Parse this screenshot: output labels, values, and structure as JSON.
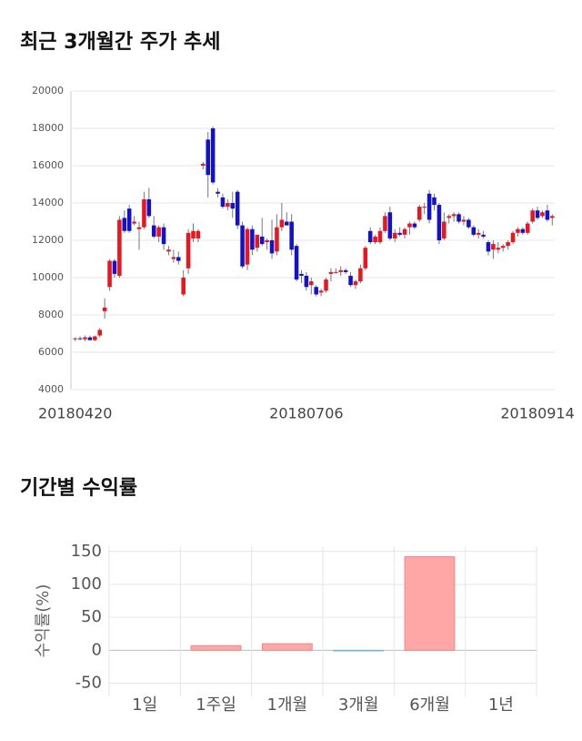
{
  "chart_data": [
    {
      "type": "candlestick",
      "title": "최근 3개월간 주가 추세",
      "categories": [
        "20180420",
        null,
        null,
        null,
        null,
        null,
        null,
        null,
        null,
        null,
        null,
        null,
        null,
        null,
        null,
        null,
        null,
        null,
        null,
        null,
        null,
        null,
        null,
        null,
        null,
        null,
        null,
        null,
        null,
        null,
        null,
        null,
        null,
        null,
        null,
        null,
        null,
        null,
        null,
        null,
        null,
        null,
        null,
        null,
        null,
        null,
        null,
        "20180706",
        null,
        null,
        null,
        null,
        null,
        null,
        null,
        null,
        null,
        null,
        null,
        null,
        null,
        null,
        null,
        null,
        null,
        null,
        null,
        null,
        null,
        null,
        null,
        null,
        null,
        null,
        null,
        null,
        null,
        null,
        null,
        null,
        null,
        null,
        null,
        null,
        null,
        null,
        null,
        null,
        null,
        null,
        null,
        null,
        null,
        null,
        "20180914",
        null,
        null,
        null
      ],
      "ohlc": [
        [
          6700,
          6800,
          6600,
          6750
        ],
        [
          6750,
          6850,
          6650,
          6700
        ],
        [
          6700,
          6900,
          6600,
          6800
        ],
        [
          6800,
          6900,
          6650,
          6650
        ],
        [
          6650,
          6900,
          6600,
          6850
        ],
        [
          6900,
          7300,
          6800,
          7200
        ],
        [
          8200,
          8900,
          7800,
          8400
        ],
        [
          9500,
          11000,
          9300,
          10900
        ],
        [
          10900,
          11000,
          10000,
          10200
        ],
        [
          10100,
          13300,
          10000,
          13100
        ],
        [
          13200,
          13600,
          12400,
          12500
        ],
        [
          13700,
          13900,
          12400,
          12500
        ],
        [
          12900,
          13300,
          12800,
          13000
        ],
        [
          12600,
          13000,
          11500,
          12700
        ],
        [
          12700,
          14600,
          12600,
          14200
        ],
        [
          14200,
          14800,
          13200,
          13300
        ],
        [
          12800,
          13300,
          12100,
          12200
        ],
        [
          12200,
          12800,
          11900,
          12700
        ],
        [
          12700,
          12900,
          11500,
          11800
        ],
        [
          11400,
          11700,
          11200,
          11500
        ],
        [
          11000,
          11500,
          10800,
          11100
        ],
        [
          11100,
          11400,
          10700,
          10900
        ],
        [
          9100,
          10400,
          9000,
          10000
        ],
        [
          10500,
          12600,
          10200,
          12400
        ],
        [
          12100,
          12900,
          11900,
          12500
        ],
        [
          12100,
          12600,
          11900,
          12500
        ],
        [
          16000,
          16200,
          15800,
          16100
        ],
        [
          17400,
          17800,
          14300,
          15500
        ],
        [
          18000,
          18100,
          15000,
          15100
        ],
        [
          14600,
          14800,
          14300,
          14500
        ],
        [
          14300,
          14500,
          13700,
          13800
        ],
        [
          13800,
          14200,
          13600,
          14000
        ],
        [
          14000,
          14600,
          13200,
          13700
        ],
        [
          14600,
          14700,
          12600,
          12800
        ],
        [
          12800,
          13000,
          10500,
          10600
        ],
        [
          10700,
          12700,
          10400,
          12600
        ],
        [
          12600,
          12800,
          11200,
          11500
        ],
        [
          11600,
          12300,
          11400,
          12300
        ],
        [
          12200,
          13200,
          11700,
          11800
        ],
        [
          11900,
          12100,
          11500,
          12000
        ],
        [
          12000,
          13100,
          11000,
          11300
        ],
        [
          11400,
          13400,
          11200,
          12700
        ],
        [
          12700,
          14000,
          12500,
          13100
        ],
        [
          13000,
          13500,
          12800,
          12800
        ],
        [
          13000,
          13400,
          11200,
          11500
        ],
        [
          11700,
          11800,
          9800,
          9900
        ],
        [
          10200,
          10400,
          9700,
          10100
        ],
        [
          10100,
          10300,
          9300,
          9500
        ],
        [
          9600,
          10000,
          9100,
          9800
        ],
        [
          9500,
          9600,
          9000,
          9100
        ],
        [
          9200,
          9400,
          9000,
          9300
        ],
        [
          9300,
          10000,
          9200,
          9900
        ],
        [
          10200,
          10500,
          9800,
          10300
        ],
        [
          10300,
          10500,
          10200,
          10300
        ],
        [
          10300,
          10600,
          10100,
          10400
        ],
        [
          10400,
          10500,
          10200,
          10300
        ],
        [
          10100,
          10300,
          9500,
          9600
        ],
        [
          9600,
          9900,
          9400,
          9800
        ],
        [
          9800,
          10700,
          9700,
          10500
        ],
        [
          10500,
          11700,
          10400,
          11600
        ],
        [
          12500,
          12700,
          11800,
          11900
        ],
        [
          11900,
          12300,
          11800,
          12200
        ],
        [
          11900,
          12700,
          11800,
          12500
        ],
        [
          12500,
          13500,
          12400,
          13300
        ],
        [
          13500,
          13800,
          12000,
          12100
        ],
        [
          12100,
          12600,
          11900,
          12400
        ],
        [
          12400,
          12700,
          12200,
          12300
        ],
        [
          12300,
          12700,
          12100,
          12600
        ],
        [
          12700,
          13000,
          12300,
          12900
        ],
        [
          12900,
          13000,
          12600,
          12700
        ],
        [
          13100,
          13900,
          13000,
          13800
        ],
        [
          13800,
          14000,
          13400,
          13800
        ],
        [
          14500,
          14700,
          12900,
          13100
        ],
        [
          14300,
          14500,
          13600,
          13900
        ],
        [
          13900,
          14000,
          11800,
          12000
        ],
        [
          12100,
          13500,
          12000,
          13000
        ],
        [
          13200,
          13400,
          12900,
          13300
        ],
        [
          13300,
          13500,
          13000,
          13400
        ],
        [
          13400,
          13500,
          12900,
          13000
        ],
        [
          13000,
          13300,
          12800,
          13100
        ],
        [
          13100,
          13200,
          12600,
          12700
        ],
        [
          12700,
          12800,
          12200,
          12300
        ],
        [
          12300,
          12600,
          12100,
          12400
        ],
        [
          12300,
          12500,
          12100,
          12200
        ],
        [
          11900,
          12000,
          11200,
          11400
        ],
        [
          11500,
          12000,
          11000,
          11800
        ],
        [
          11500,
          11900,
          11300,
          11600
        ],
        [
          11600,
          11800,
          11400,
          11700
        ],
        [
          11700,
          12000,
          11500,
          11900
        ],
        [
          11900,
          12500,
          11800,
          12400
        ],
        [
          12400,
          12700,
          12200,
          12600
        ],
        [
          12600,
          12700,
          12300,
          12400
        ],
        [
          12400,
          13000,
          12300,
          12900
        ],
        [
          13000,
          13700,
          12900,
          13600
        ],
        [
          13600,
          13800,
          13100,
          13200
        ],
        [
          13300,
          13600,
          13200,
          13500
        ],
        [
          13600,
          13900,
          13000,
          13100
        ],
        [
          13200,
          13400,
          12800,
          13300
        ]
      ],
      "up_color": "#e8161d",
      "down_color": "#1212cc",
      "ylim": [
        4000,
        20000
      ],
      "yticks": [
        4000,
        6000,
        8000,
        10000,
        12000,
        14000,
        16000,
        18000,
        20000
      ],
      "grid": true
    },
    {
      "type": "bar",
      "title": "기간별 수익률",
      "y_label": "수익률(%)",
      "categories": [
        "1일",
        "1주일",
        "1개월",
        "3개월",
        "6개월",
        "1년"
      ],
      "values": [
        0,
        7,
        10,
        -1,
        142,
        0
      ],
      "positive_color": "#ffa6a6",
      "negative_color": "#9fd3e0",
      "ylim": [
        -70,
        158
      ],
      "yticks": [
        -50,
        0,
        50,
        100,
        150
      ],
      "grid": true
    }
  ]
}
